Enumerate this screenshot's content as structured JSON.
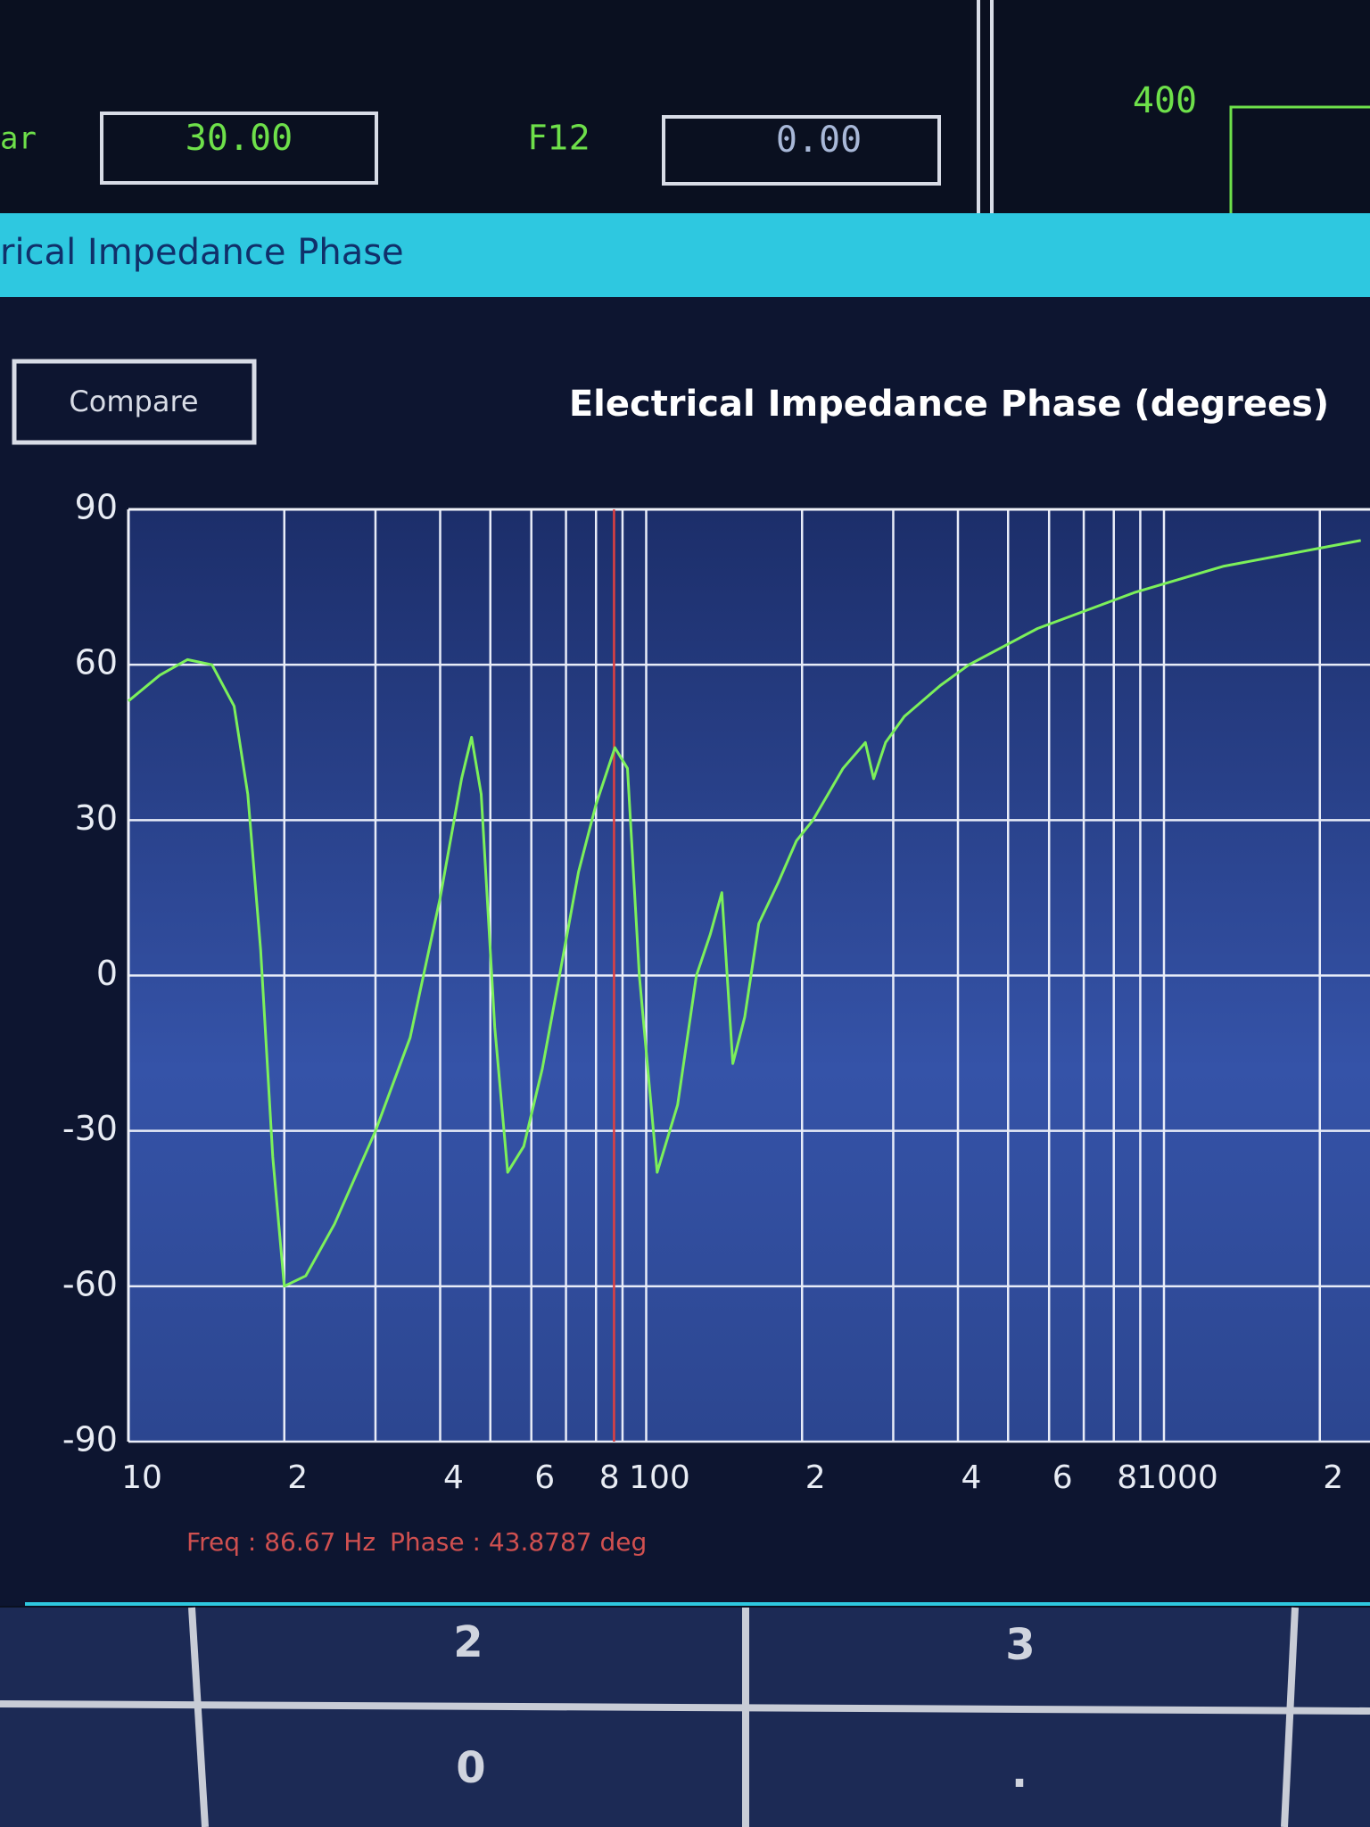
{
  "top_panel": {
    "label_left": "ar",
    "field_1": "30.00",
    "label_f12": "F12",
    "field_2": "0.00",
    "readout": "400"
  },
  "window": {
    "title": "rical Impedance Phase",
    "compare_button": "Compare"
  },
  "chart_data": {
    "type": "line",
    "title": "Electrical Impedance Phase (degrees)",
    "x": [
      10,
      11.5,
      13,
      14.5,
      16,
      17,
      18,
      19,
      20,
      22,
      25,
      30,
      35,
      40,
      44,
      46,
      48,
      51,
      54,
      58,
      63,
      68,
      74,
      80,
      87,
      92,
      97,
      105,
      115,
      125,
      133,
      140,
      147,
      155,
      165,
      180,
      195,
      210,
      240,
      265,
      275,
      290,
      315,
      370,
      420,
      570,
      880,
      1300,
      2400
    ],
    "values": [
      53,
      58,
      61,
      60,
      52,
      35,
      5,
      -35,
      -60,
      -58,
      -48,
      -30,
      -12,
      15,
      38,
      46,
      35,
      -10,
      -38,
      -33,
      -18,
      0,
      20,
      33,
      44,
      40,
      0,
      -38,
      -25,
      0,
      8,
      16,
      -17,
      -8,
      10,
      18,
      26,
      30,
      40,
      45,
      38,
      45,
      50,
      56,
      60,
      67,
      74,
      79,
      84
    ],
    "color": "#7cf05a",
    "log_x": true,
    "grid": true,
    "xlim": [
      10,
      2500
    ],
    "ylim": [
      -90,
      90
    ],
    "xticks": [
      10,
      {
        "value": 20,
        "label": "2"
      },
      {
        "value": 40,
        "label": "4"
      },
      {
        "value": 60,
        "label": "6"
      },
      {
        "value": 80,
        "label": "8"
      },
      100,
      {
        "value": 200,
        "label": "2"
      },
      {
        "value": 400,
        "label": "4"
      },
      {
        "value": 600,
        "label": "6"
      },
      {
        "value": 800,
        "label": "8"
      },
      1000,
      {
        "value": 2000,
        "label": "2"
      }
    ],
    "xminor": [
      30,
      50,
      70,
      90,
      300,
      500,
      700,
      900
    ],
    "yticks": [
      -90,
      -60,
      -30,
      0,
      30,
      60,
      90
    ],
    "cursor_x": 86.67,
    "cursor_color": "#e04040",
    "status": [
      "Freq : 86.67 Hz",
      "Phase : 43.8787 deg"
    ]
  },
  "keypad": [
    "2",
    "3",
    "0",
    "."
  ]
}
